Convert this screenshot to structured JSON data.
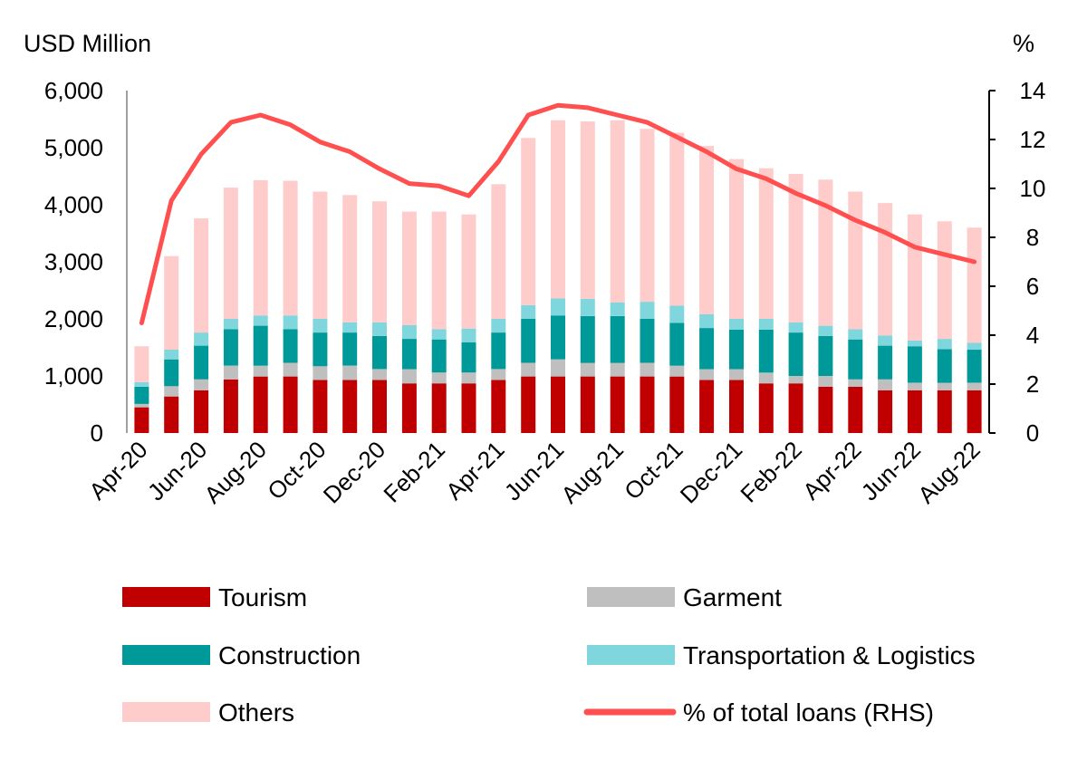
{
  "chart_data": {
    "type": "bar",
    "stacked": true,
    "categories": [
      "Apr-20",
      "May-20",
      "Jun-20",
      "Jul-20",
      "Aug-20",
      "Sep-20",
      "Oct-20",
      "Nov-20",
      "Dec-20",
      "Jan-21",
      "Feb-21",
      "Mar-21",
      "Apr-21",
      "May-21",
      "Jun-21",
      "Jul-21",
      "Aug-21",
      "Sep-21",
      "Oct-21",
      "Nov-21",
      "Dec-21",
      "Jan-22",
      "Feb-22",
      "Mar-22",
      "Apr-22",
      "May-22",
      "Jun-22",
      "Jul-22",
      "Aug-22"
    ],
    "x_tick_labels": [
      "Apr-20",
      "Jun-20",
      "Aug-20",
      "Oct-20",
      "Dec-20",
      "Feb-21",
      "Apr-21",
      "Jun-21",
      "Aug-21",
      "Oct-21",
      "Dec-21",
      "Feb-22",
      "Apr-22",
      "Jun-22",
      "Aug-22"
    ],
    "left_axis": {
      "unit": "USD Million",
      "ylim": [
        0,
        6000
      ],
      "ticks": [
        "0",
        "1,000",
        "2,000",
        "3,000",
        "4,000",
        "5,000",
        "6,000"
      ]
    },
    "right_axis": {
      "unit": "%",
      "ylim": [
        0,
        14
      ],
      "ticks": [
        "0",
        "2",
        "4",
        "6",
        "8",
        "10",
        "12",
        "14"
      ]
    },
    "series": [
      {
        "name": "Tourism",
        "color": "#c00000",
        "values": [
          450,
          640,
          750,
          940,
          990,
          990,
          930,
          930,
          930,
          870,
          870,
          870,
          930,
          990,
          990,
          990,
          990,
          990,
          990,
          930,
          930,
          870,
          870,
          810,
          810,
          750,
          750,
          750,
          750
        ]
      },
      {
        "name": "Garment",
        "color": "#bfbfbf",
        "values": [
          60,
          180,
          190,
          240,
          190,
          240,
          240,
          250,
          190,
          250,
          190,
          190,
          190,
          240,
          300,
          240,
          240,
          240,
          190,
          190,
          190,
          190,
          130,
          190,
          130,
          190,
          130,
          130,
          130
        ]
      },
      {
        "name": "Construction",
        "color": "#009999",
        "values": [
          300,
          470,
          590,
          640,
          700,
          590,
          590,
          580,
          580,
          530,
          580,
          530,
          640,
          770,
          770,
          820,
          820,
          770,
          750,
          720,
          690,
          750,
          760,
          700,
          700,
          590,
          640,
          590,
          580
        ]
      },
      {
        "name": "Transportation & Logistics",
        "color": "#7fd6dc",
        "values": [
          80,
          170,
          230,
          180,
          180,
          240,
          240,
          180,
          240,
          240,
          180,
          240,
          240,
          240,
          300,
          300,
          240,
          300,
          300,
          240,
          190,
          190,
          180,
          180,
          180,
          180,
          100,
          180,
          120
        ]
      },
      {
        "name": "Others",
        "color": "#ffcccc",
        "values": [
          630,
          1640,
          2000,
          2300,
          2370,
          2360,
          2230,
          2230,
          2120,
          1990,
          2060,
          2000,
          2360,
          2930,
          3120,
          3110,
          3190,
          3030,
          3030,
          2950,
          2800,
          2640,
          2600,
          2560,
          2410,
          2320,
          2210,
          2060,
          2020
        ]
      },
      {
        "name": "% of total loans (RHS)",
        "type": "line",
        "axis": "right",
        "color": "#ff4f4f",
        "values": [
          4.5,
          9.5,
          11.4,
          12.7,
          13.0,
          12.6,
          11.9,
          11.5,
          10.8,
          10.2,
          10.1,
          9.7,
          11.1,
          13.0,
          13.4,
          13.3,
          13.0,
          12.7,
          12.1,
          11.5,
          10.8,
          10.4,
          9.8,
          9.3,
          8.7,
          8.2,
          7.6,
          7.3,
          7.0
        ]
      }
    ],
    "legend": {
      "placement": "bottom",
      "columns": 2
    }
  }
}
